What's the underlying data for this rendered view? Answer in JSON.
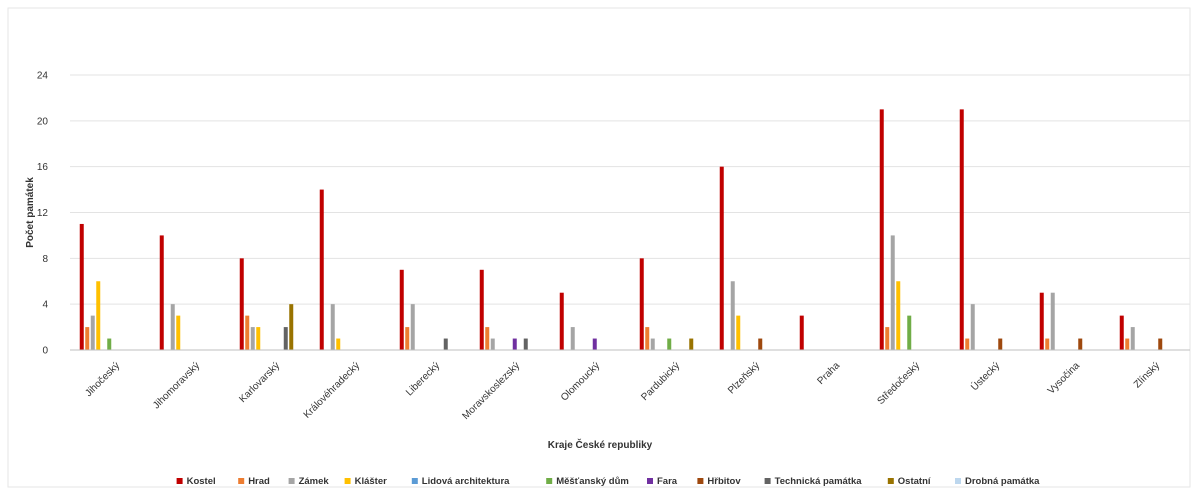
{
  "chart_data": {
    "type": "bar",
    "title": "",
    "xlabel": "Kraje České republiky",
    "ylabel": "Počet památek",
    "ylim": [
      0,
      24
    ],
    "yticks": [
      0,
      4,
      8,
      12,
      16,
      20,
      24
    ],
    "grid": true,
    "legend_position": "bottom",
    "categories": [
      "Jihočeský",
      "Jihomoravský",
      "Karlovarský",
      "Královéhradecký",
      "Liberecký",
      "Moravskoslezský",
      "Olomoucký",
      "Pardubický",
      "Plzeňský",
      "Praha",
      "Středočeský",
      "Ústecký",
      "Vysočina",
      "Zlínský"
    ],
    "series": [
      {
        "name": "Kostel",
        "color": "#C00000",
        "values": [
          11,
          10,
          8,
          14,
          7,
          7,
          5,
          8,
          16,
          3,
          21,
          21,
          5,
          3
        ]
      },
      {
        "name": "Hrad",
        "color": "#ED7D31",
        "values": [
          2,
          0,
          3,
          0,
          2,
          2,
          0,
          2,
          0,
          0,
          2,
          1,
          1,
          1
        ]
      },
      {
        "name": "Zámek",
        "color": "#A5A5A5",
        "values": [
          3,
          4,
          2,
          4,
          4,
          1,
          2,
          1,
          6,
          0,
          10,
          4,
          5,
          2
        ]
      },
      {
        "name": "Klášter",
        "color": "#FFC000",
        "values": [
          6,
          3,
          2,
          1,
          0,
          0,
          0,
          0,
          3,
          0,
          6,
          0,
          0,
          0
        ]
      },
      {
        "name": "Lidová architektura",
        "color": "#5B9BD5",
        "values": [
          0,
          0,
          0,
          0,
          0,
          0,
          0,
          0,
          0,
          0,
          0,
          0,
          0,
          0
        ]
      },
      {
        "name": "Měšťanský dům",
        "color": "#70AD47",
        "values": [
          1,
          0,
          0,
          0,
          0,
          0,
          0,
          1,
          0,
          0,
          3,
          0,
          0,
          0
        ]
      },
      {
        "name": "Fara",
        "color": "#7030A0",
        "values": [
          0,
          0,
          0,
          0,
          0,
          1,
          1,
          0,
          0,
          0,
          0,
          0,
          0,
          0
        ]
      },
      {
        "name": "Hřbitov",
        "color": "#9E480E",
        "values": [
          0,
          0,
          0,
          0,
          0,
          0,
          0,
          0,
          1,
          0,
          0,
          1,
          1,
          1
        ]
      },
      {
        "name": "Technická památka",
        "color": "#636363",
        "values": [
          0,
          0,
          2,
          0,
          1,
          1,
          0,
          0,
          0,
          0,
          0,
          0,
          0,
          0
        ]
      },
      {
        "name": "Ostatní",
        "color": "#997300",
        "values": [
          0,
          0,
          4,
          0,
          0,
          0,
          0,
          1,
          0,
          0,
          0,
          0,
          0,
          0
        ]
      },
      {
        "name": "Drobná památka",
        "color": "#BDD7EE",
        "values": [
          0,
          0,
          0,
          0,
          0,
          0,
          0,
          0,
          0,
          0,
          0,
          0,
          0,
          0
        ]
      }
    ]
  }
}
